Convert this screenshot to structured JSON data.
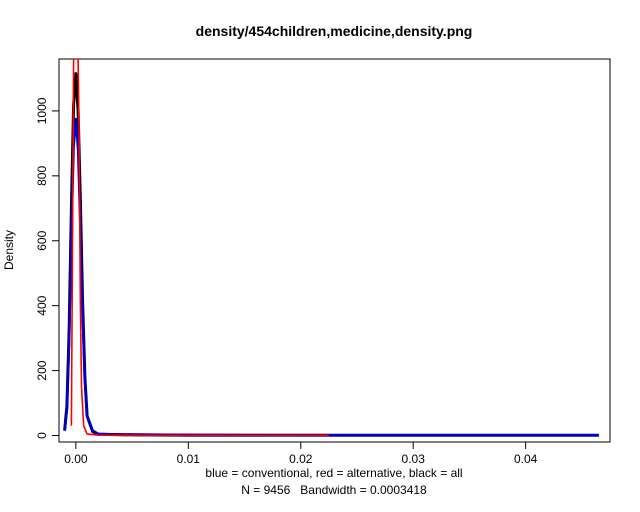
{
  "chart_data": {
    "type": "line",
    "title": "density/454children,medicine,density.png",
    "xlabel": "blue = conventional, red = alternative, black = all",
    "sublabel": "N = 9456   Bandwidth = 0.0003418",
    "ylabel": "Density",
    "xlim": [
      -0.0015,
      0.0475
    ],
    "ylim": [
      -20,
      1160
    ],
    "x_ticks": [
      0.0,
      0.01,
      0.02,
      0.03,
      0.04
    ],
    "x_tick_labels": [
      "0.00",
      "0.01",
      "0.02",
      "0.03",
      "0.04"
    ],
    "y_ticks": [
      0,
      200,
      400,
      600,
      800,
      1000
    ],
    "y_tick_labels": [
      "0",
      "200",
      "400",
      "600",
      "800",
      "1000"
    ],
    "series": [
      {
        "color": "#000000",
        "x": [
          -0.001,
          -0.0008,
          -0.0006,
          -0.0004,
          -0.0002,
          0.0,
          0.0002,
          0.0004,
          0.0006,
          0.0008,
          0.001,
          0.0015,
          0.002,
          0.003,
          0.005,
          0.01,
          0.02,
          0.03,
          0.04,
          0.0465
        ],
        "y": [
          15,
          90,
          320,
          700,
          1020,
          1115,
          1000,
          720,
          410,
          180,
          60,
          12,
          4,
          3,
          2,
          1,
          1,
          0.5,
          0.5,
          0.5
        ]
      },
      {
        "color": "#0000cc",
        "x": [
          -0.001,
          -0.0008,
          -0.0006,
          -0.0004,
          -0.0002,
          0.0,
          0.0002,
          0.0004,
          0.0006,
          0.0008,
          0.001,
          0.0015,
          0.002,
          0.003,
          0.005,
          0.01,
          0.02,
          0.03,
          0.04,
          0.0465
        ],
        "y": [
          15,
          80,
          290,
          620,
          890,
          975,
          880,
          640,
          380,
          170,
          60,
          15,
          5,
          4,
          3,
          2,
          1,
          1,
          0.5,
          0.5
        ]
      },
      {
        "color": "#ff0000",
        "x": [
          -0.0004,
          -0.0003,
          -0.0002,
          -0.0001,
          0.0,
          0.0001,
          0.0002,
          0.0003,
          0.0004,
          0.0005,
          0.0007,
          0.001,
          0.002,
          0.005,
          0.01,
          0.02,
          0.0225
        ],
        "y": [
          30,
          600,
          1160,
          1160,
          1160,
          1160,
          1160,
          900,
          400,
          150,
          30,
          5,
          1,
          0.5,
          0.3,
          0.2,
          0.2
        ]
      }
    ]
  }
}
